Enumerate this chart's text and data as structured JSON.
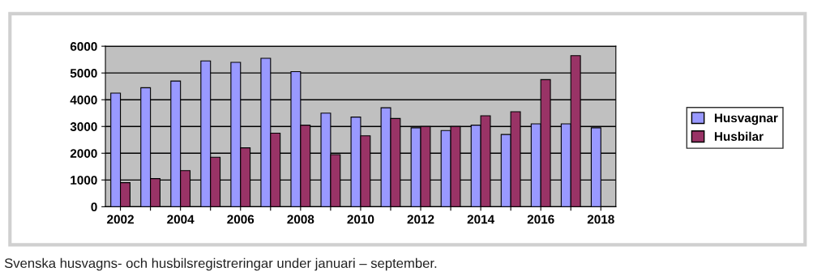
{
  "chart_data": {
    "type": "bar",
    "categories": [
      "2002",
      null,
      "2004",
      null,
      "2006",
      null,
      "2008",
      null,
      "2010",
      null,
      "2012",
      null,
      "2014",
      null,
      "2016",
      null,
      "2018"
    ],
    "series": [
      {
        "name": "Husvagnar",
        "color": "#9999ff",
        "values": [
          4250,
          4450,
          4700,
          5450,
          5400,
          5550,
          5050,
          3500,
          3350,
          3700,
          2950,
          2850,
          3050,
          2700,
          3100,
          3100,
          2950
        ]
      },
      {
        "name": "Husbilar",
        "color": "#993366",
        "values": [
          900,
          1050,
          1350,
          1850,
          2200,
          2750,
          3050,
          1950,
          2650,
          3300,
          3000,
          3000,
          3400,
          3550,
          4750,
          5650,
          null
        ]
      }
    ],
    "ylim": [
      0,
      6000
    ],
    "yticks": [
      0,
      1000,
      2000,
      3000,
      4000,
      5000,
      6000
    ],
    "grid": "y",
    "legend": "right",
    "annotations": [
      "Svenska husvagns- och husbilsregistreringar under januari – september."
    ]
  }
}
